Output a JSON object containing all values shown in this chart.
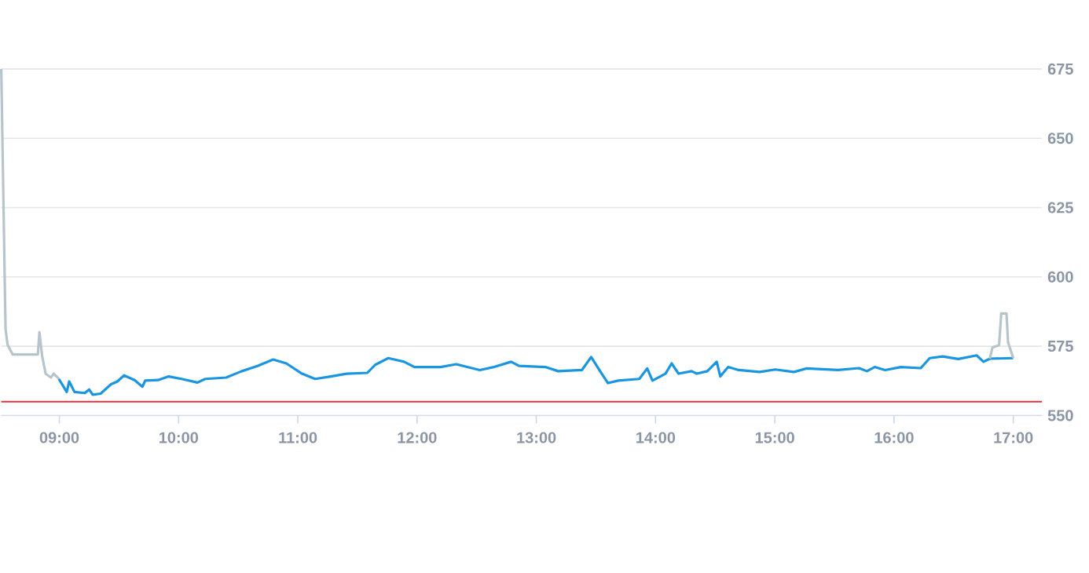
{
  "chart_data": {
    "type": "line",
    "xlim": [
      8.513,
      17.24
    ],
    "ylim": [
      550,
      675
    ],
    "xticks": [
      {
        "value": 9,
        "label": "09:00"
      },
      {
        "value": 10,
        "label": "10:00"
      },
      {
        "value": 11,
        "label": "11:00"
      },
      {
        "value": 12,
        "label": "12:00"
      },
      {
        "value": 13,
        "label": "13:00"
      },
      {
        "value": 14,
        "label": "14:00"
      },
      {
        "value": 15,
        "label": "15:00"
      },
      {
        "value": 16,
        "label": "16:00"
      },
      {
        "value": 17,
        "label": "17:00"
      }
    ],
    "yticks": [
      550,
      575,
      600,
      625,
      650,
      675
    ],
    "grid": "y",
    "marker": "none",
    "line_style": "solid",
    "ref_lines": [
      {
        "axis": "y",
        "value": 555,
        "color": "#d9333f"
      }
    ],
    "series": [
      {
        "color": "#b8c4cc",
        "x": [
          8.513,
          8.549,
          8.566,
          8.609,
          8.82,
          8.833,
          8.855,
          8.885,
          8.93,
          8.951,
          8.987,
          8.996
        ],
        "values": [
          675,
          581.1,
          575.5,
          572,
          572,
          580.1,
          571.7,
          565.1,
          563.7,
          565.1,
          563.7,
          563.2
        ]
      },
      {
        "color": "#1a96e0",
        "x": [
          8.996,
          9.062,
          9.083,
          9.127,
          9.214,
          9.25,
          9.28,
          9.346,
          9.434,
          9.487,
          9.543,
          9.631,
          9.697,
          9.72,
          9.829,
          9.917,
          10.026,
          10.158,
          10.224,
          10.399,
          10.53,
          10.662,
          10.793,
          10.904,
          11.035,
          11.145,
          11.276,
          11.408,
          11.583,
          11.649,
          11.759,
          11.891,
          11.978,
          12.197,
          12.329,
          12.526,
          12.635,
          12.789,
          12.855,
          13.075,
          13.184,
          13.382,
          13.46,
          13.535,
          13.601,
          13.688,
          13.864,
          13.93,
          13.974,
          14.083,
          14.135,
          14.193,
          14.302,
          14.346,
          14.434,
          14.513,
          14.543,
          14.609,
          14.697,
          14.872,
          15.004,
          15.158,
          15.267,
          15.53,
          15.706,
          15.772,
          15.838,
          15.925,
          16.057,
          16.224,
          16.299,
          16.408,
          16.539,
          16.693,
          16.75,
          16.803,
          17.0
        ],
        "values": [
          563.2,
          558.5,
          562.3,
          558.5,
          558.1,
          559.4,
          557.5,
          557.9,
          561.3,
          562.3,
          564.5,
          562.8,
          560.4,
          562.6,
          562.8,
          564.1,
          563.2,
          561.9,
          563.2,
          563.7,
          566,
          567.9,
          570.2,
          568.8,
          565.1,
          563.2,
          564.1,
          565.1,
          565.4,
          568.3,
          570.7,
          569.4,
          567.5,
          567.5,
          568.5,
          566.4,
          567.4,
          569.4,
          567.9,
          567.5,
          566,
          566.4,
          571.1,
          566,
          561.7,
          562.6,
          563.2,
          567,
          562.6,
          565.1,
          568.8,
          565.1,
          566,
          565.1,
          566,
          569.4,
          564.1,
          567.5,
          566.4,
          565.7,
          566.6,
          565.7,
          567,
          566.4,
          567.1,
          566,
          567.5,
          566.4,
          567.5,
          567.1,
          570.7,
          571.3,
          570.4,
          571.7,
          569.4,
          570.5,
          570.7
        ]
      },
      {
        "color": "#b8c4cc",
        "x": [
          16.803,
          16.825,
          16.881,
          16.899,
          16.943,
          16.956,
          17.0
        ],
        "values": [
          570.5,
          574.5,
          575.4,
          586.8,
          586.8,
          576.4,
          570.7
        ]
      }
    ]
  }
}
